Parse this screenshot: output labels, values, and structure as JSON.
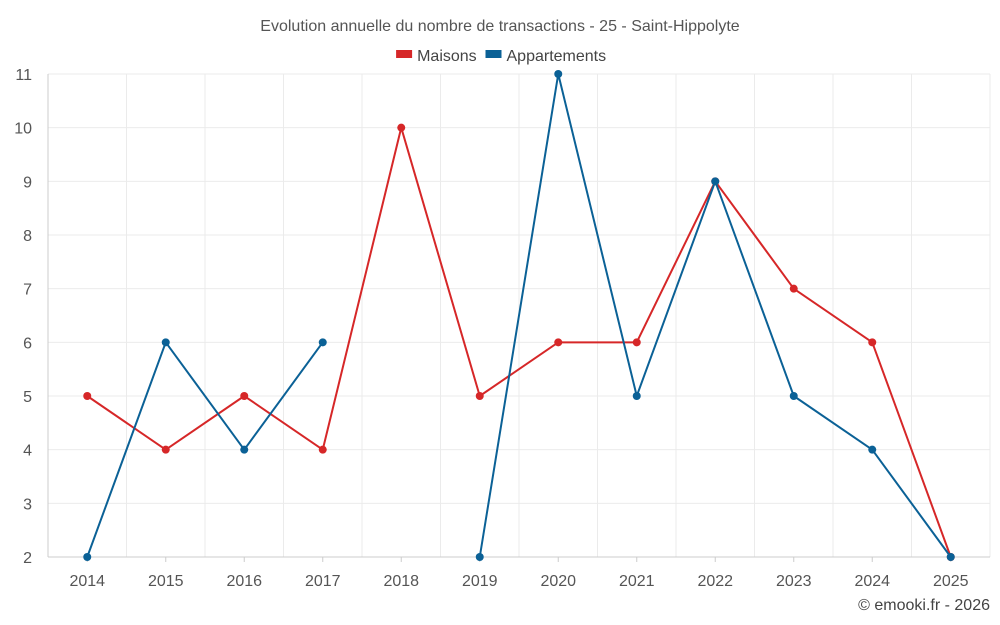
{
  "chart_data": {
    "type": "line",
    "title": "Evolution annuelle du nombre de transactions - 25 - Saint-Hippolyte",
    "categories": [
      "2014",
      "2015",
      "2016",
      "2017",
      "2018",
      "2019",
      "2020",
      "2021",
      "2022",
      "2023",
      "2024",
      "2025"
    ],
    "series": [
      {
        "name": "Maisons",
        "color": "#d62728",
        "values": [
          5,
          4,
          5,
          4,
          10,
          5,
          6,
          6,
          9,
          7,
          6,
          2
        ]
      },
      {
        "name": "Appartements",
        "color": "#0b6196",
        "values": [
          2,
          6,
          4,
          6,
          null,
          2,
          11,
          5,
          9,
          5,
          4,
          2
        ]
      }
    ],
    "ylim": [
      2,
      11
    ],
    "yticks": [
      "2",
      "3",
      "4",
      "5",
      "6",
      "7",
      "8",
      "9",
      "10",
      "11"
    ],
    "grid": true,
    "legend_position": "top-center",
    "xlabel": "",
    "ylabel": ""
  },
  "credit": "© emooki.fr - 2026"
}
